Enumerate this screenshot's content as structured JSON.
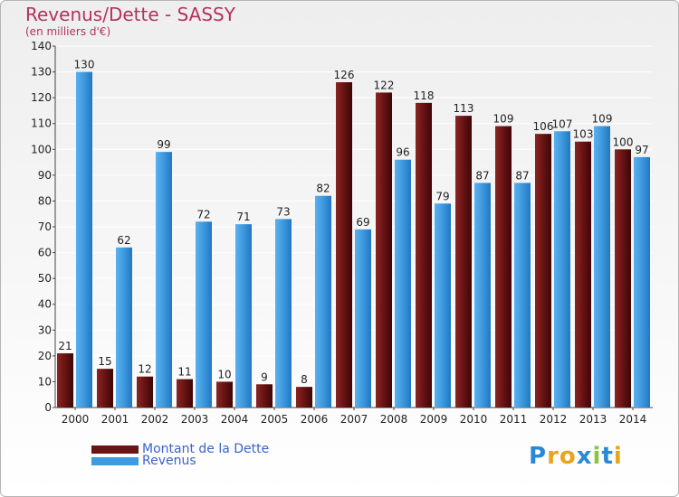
{
  "header": {
    "title": "Revenus/Dette - SASSY",
    "subtitle": "(en milliers d'€)"
  },
  "legend": {
    "items": [
      {
        "label": "Montant de la Dette",
        "color": "#6b1414"
      },
      {
        "label": "Revenus",
        "color": "#3f9be0"
      }
    ]
  },
  "logo": {
    "letters": [
      {
        "char": "P",
        "color": "#2a89d6"
      },
      {
        "char": "r",
        "color": "#e8a51c"
      },
      {
        "char": "o",
        "color": "#e8a51c"
      },
      {
        "char": "x",
        "color": "#2a89d6"
      },
      {
        "char": "i",
        "color": "#8cc63f"
      },
      {
        "char": "t",
        "color": "#2a89d6"
      },
      {
        "char": "i",
        "color": "#e8a51c"
      }
    ]
  },
  "chart_data": {
    "type": "bar",
    "title": "Revenus/Dette - SASSY",
    "subtitle": "(en milliers d'€)",
    "xlabel": "",
    "ylabel": "",
    "ylim": [
      0,
      140
    ],
    "yticks": [
      0,
      10,
      20,
      30,
      40,
      50,
      60,
      70,
      80,
      90,
      100,
      110,
      120,
      130,
      140
    ],
    "grid": true,
    "legend_position": "bottom-left",
    "categories": [
      "2000",
      "2001",
      "2002",
      "2003",
      "2004",
      "2005",
      "2006",
      "2007",
      "2008",
      "2009",
      "2010",
      "2011",
      "2012",
      "2013",
      "2014"
    ],
    "series": [
      {
        "name": "Montant de la Dette",
        "color": "#6b1414",
        "values": [
          21,
          15,
          12,
          11,
          10,
          9,
          8,
          126,
          122,
          118,
          113,
          109,
          106,
          103,
          100
        ]
      },
      {
        "name": "Revenus",
        "color": "#3f9be0",
        "values": [
          130,
          62,
          99,
          72,
          71,
          73,
          82,
          69,
          96,
          79,
          87,
          87,
          107,
          109,
          97
        ]
      }
    ]
  }
}
